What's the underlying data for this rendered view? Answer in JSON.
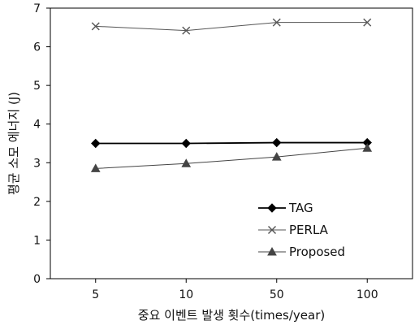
{
  "chart_data": {
    "type": "line",
    "categories": [
      "5",
      "10",
      "50",
      "100"
    ],
    "series": [
      {
        "name": "TAG",
        "values": [
          3.5,
          3.5,
          3.52,
          3.52
        ],
        "marker": "diamond",
        "color": "#000000"
      },
      {
        "name": "PERLA",
        "values": [
          6.53,
          6.42,
          6.63,
          6.63
        ],
        "marker": "x",
        "color": "#555555"
      },
      {
        "name": "Proposed",
        "values": [
          2.85,
          2.98,
          3.15,
          3.38
        ],
        "marker": "triangle",
        "color": "#444444"
      }
    ],
    "xlabel": "중요 이벤트 발생 횟수(times/year)",
    "ylabel": "평균 소모 에너지 (J)",
    "ylim": [
      0,
      7
    ],
    "yticks": [
      0,
      1,
      2,
      3,
      4,
      5,
      6,
      7
    ],
    "grid": false,
    "legend": "bottom-right"
  }
}
